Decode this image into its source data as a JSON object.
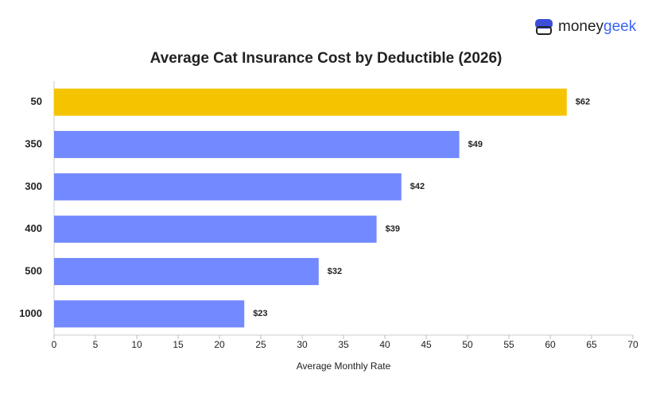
{
  "logo": {
    "prefix": "money",
    "suffix": "geek"
  },
  "chart_data": {
    "type": "hbar",
    "title": "Average Cat Insurance Cost by Deductible (2026)",
    "categories": [
      "50",
      "350",
      "300",
      "400",
      "500",
      "1000"
    ],
    "values": [
      62,
      49,
      42,
      39,
      32,
      23
    ],
    "value_labels": [
      "$62",
      "$49",
      "$42",
      "$39",
      "$32",
      "$23"
    ],
    "colors": [
      "#f5c400",
      "#7289ff",
      "#7289ff",
      "#7289ff",
      "#7289ff",
      "#7289ff"
    ],
    "xlabel": "Average Monthly Rate",
    "xlim": [
      0,
      70
    ],
    "xticks": [
      0,
      5,
      10,
      15,
      20,
      25,
      30,
      35,
      40,
      45,
      50,
      55,
      60,
      65,
      70
    ],
    "grid": false
  }
}
